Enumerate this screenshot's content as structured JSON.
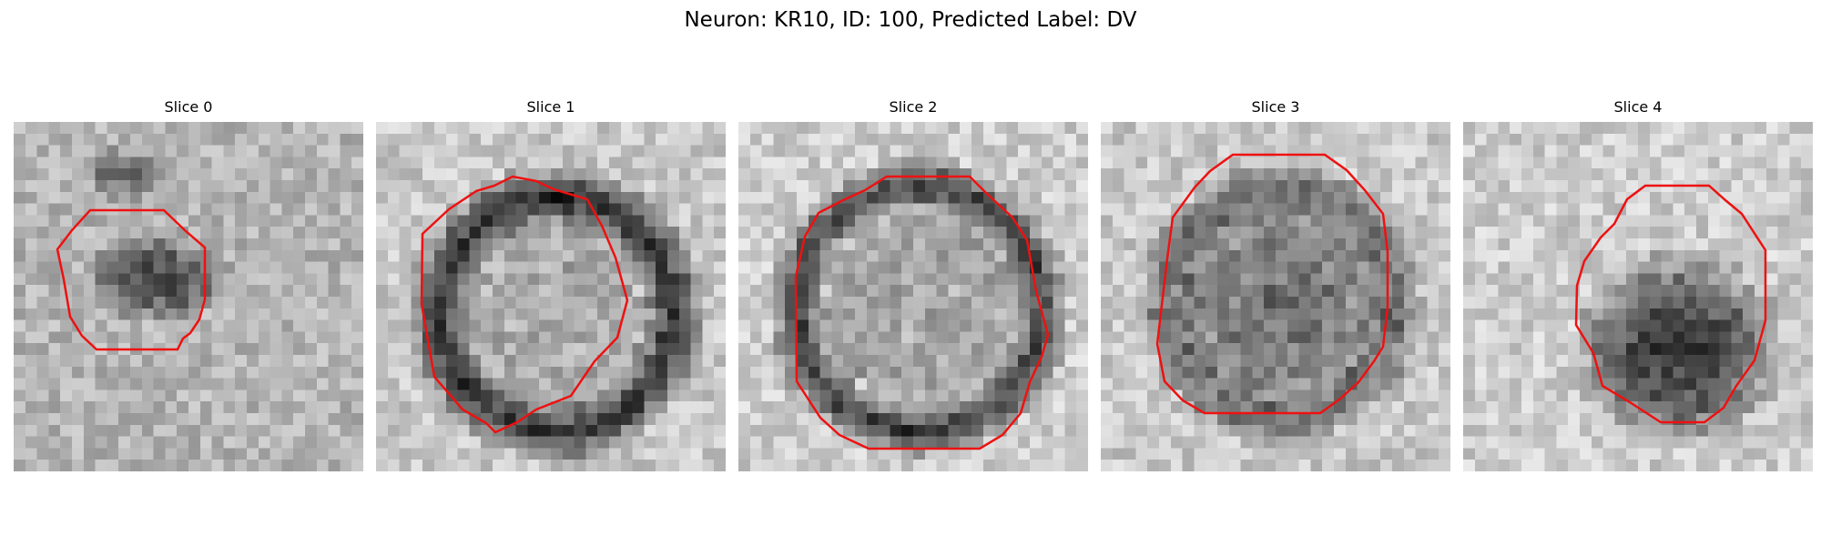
{
  "figure": {
    "title": "Neuron: KR10, ID: 100, Predicted Label: DV"
  },
  "contour_color": "#ee1111",
  "panels": [
    {
      "title": "Slice 0"
    },
    {
      "title": "Slice 1"
    },
    {
      "title": "Slice 2"
    },
    {
      "title": "Slice 3"
    },
    {
      "title": "Slice 4"
    }
  ]
}
